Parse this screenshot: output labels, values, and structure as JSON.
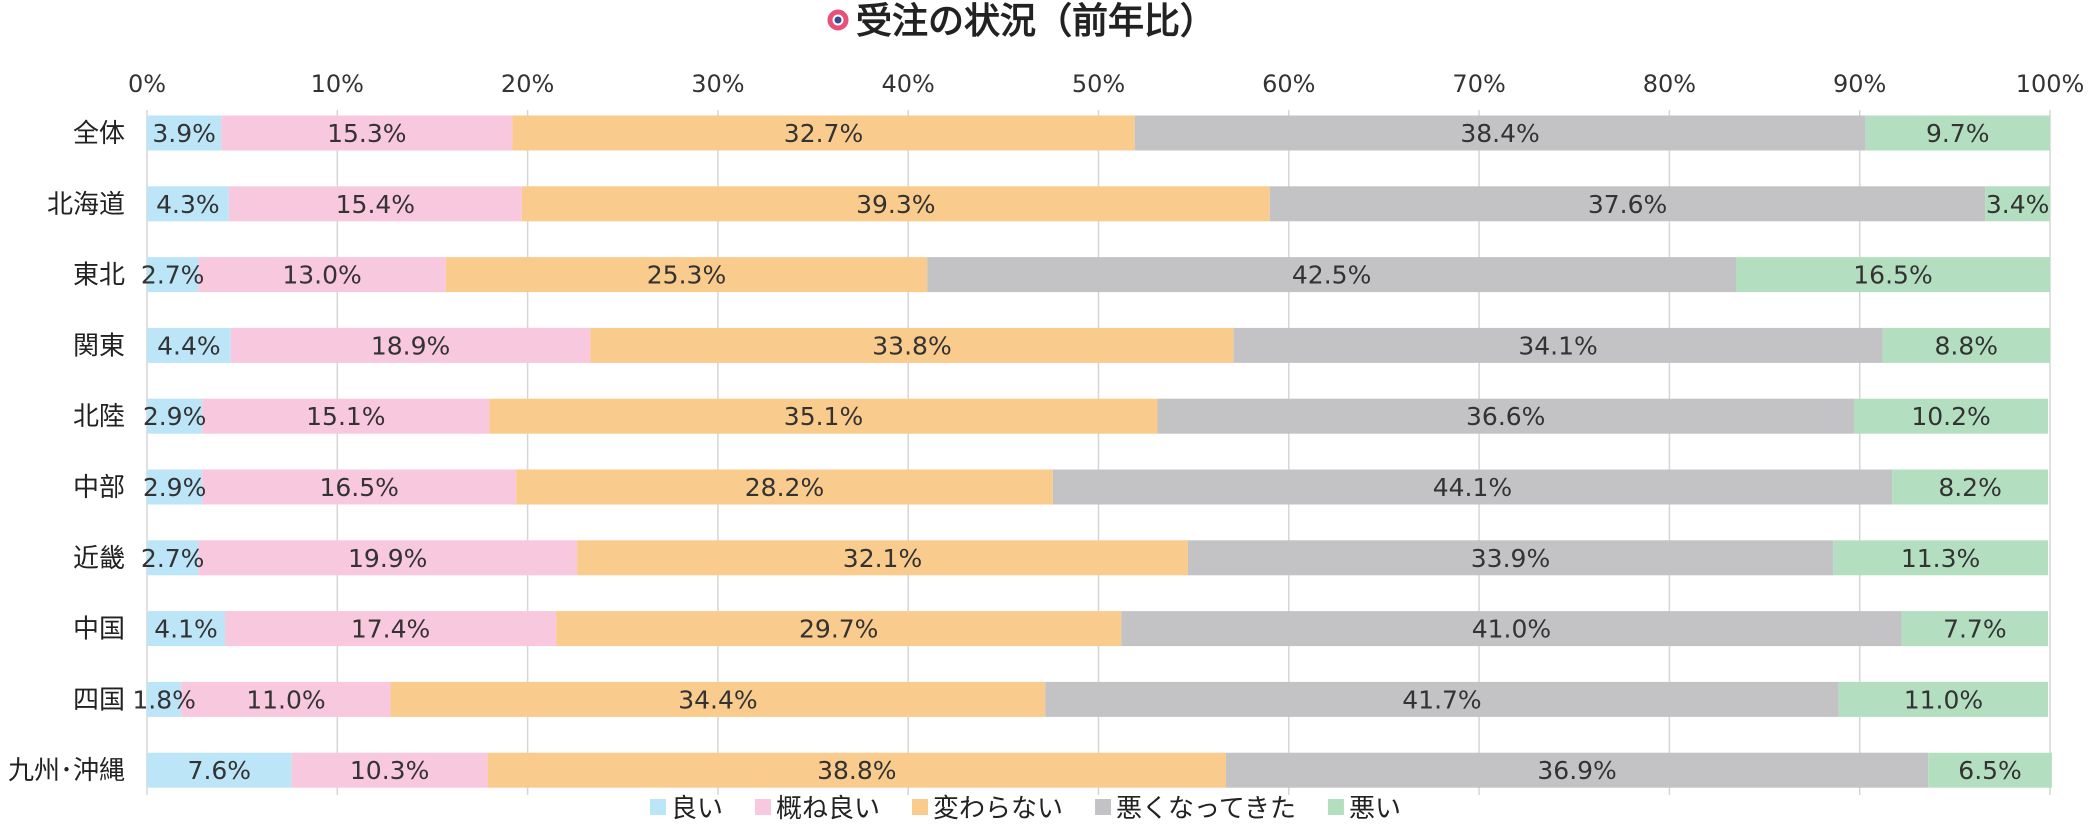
{
  "chart_data": {
    "type": "bar",
    "orientation": "horizontal",
    "stacked": true,
    "title": "受注の状況（前年比）",
    "xlim": [
      0,
      100
    ],
    "x_ticks": [
      "0%",
      "10%",
      "20%",
      "30%",
      "40%",
      "50%",
      "60%",
      "70%",
      "80%",
      "90%",
      "100%"
    ],
    "grid": true,
    "legend_position": "bottom",
    "categories": [
      "全体",
      "北海道",
      "東北",
      "関東",
      "北陸",
      "中部",
      "近畿",
      "中国",
      "四国",
      "九州･沖縄"
    ],
    "series": [
      {
        "name": "良い",
        "color": "#bde5f8",
        "values": [
          3.9,
          4.3,
          2.7,
          4.4,
          2.9,
          2.9,
          2.7,
          4.1,
          1.8,
          7.6
        ],
        "labels": [
          "3.9%",
          "4.3%",
          "2.7%",
          "4.4%",
          "2.9%",
          "2.9%",
          "2.7%",
          "4.1%",
          "1.8%",
          "7.6%"
        ]
      },
      {
        "name": "概ね良い",
        "color": "#f8c8de",
        "values": [
          15.3,
          15.4,
          13.0,
          18.9,
          15.1,
          16.5,
          19.9,
          17.4,
          11.0,
          10.3
        ],
        "labels": [
          "15.3%",
          "15.4%",
          "13.0%",
          "18.9%",
          "15.1%",
          "16.5%",
          "19.9%",
          "17.4%",
          "11.0%",
          "10.3%"
        ]
      },
      {
        "name": "変わらない",
        "color": "#f9cb8c",
        "values": [
          32.7,
          39.3,
          25.3,
          33.8,
          35.1,
          28.2,
          32.1,
          29.7,
          34.4,
          38.8
        ],
        "labels": [
          "32.7%",
          "39.3%",
          "25.3%",
          "33.8%",
          "35.1%",
          "28.2%",
          "32.1%",
          "29.7%",
          "34.4%",
          "38.8%"
        ]
      },
      {
        "name": "悪くなってきた",
        "color": "#c3c3c5",
        "values": [
          38.4,
          37.6,
          42.5,
          34.1,
          36.6,
          44.1,
          33.9,
          41.0,
          41.7,
          36.9
        ],
        "labels": [
          "38.4%",
          "37.6%",
          "42.5%",
          "34.1%",
          "36.6%",
          "44.1%",
          "33.9%",
          "41.0%",
          "41.7%",
          "36.9%"
        ]
      },
      {
        "name": "悪い",
        "color": "#b3dfc0",
        "values": [
          9.7,
          3.4,
          16.5,
          8.8,
          10.2,
          8.2,
          11.3,
          7.7,
          11.0,
          6.5
        ],
        "labels": [
          "9.7%",
          "3.4%",
          "16.5%",
          "8.8%",
          "10.2%",
          "8.2%",
          "11.3%",
          "7.7%",
          "11.0%",
          "6.5%"
        ]
      }
    ]
  }
}
